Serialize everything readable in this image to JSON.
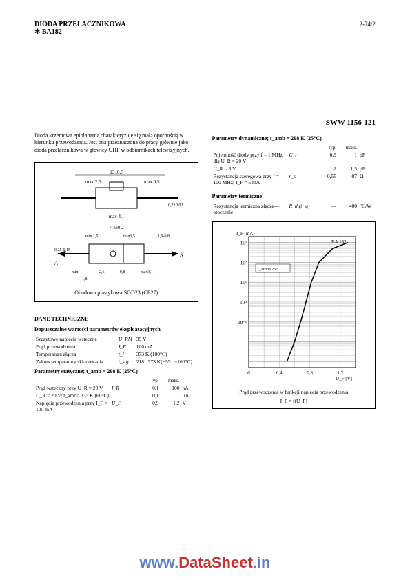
{
  "header": {
    "title_line1": "DIODA PRZEŁĄCZNIKOWA",
    "title_line2": "✻ BA182",
    "page": "2-74/2"
  },
  "sww": "SWW 1156-121",
  "intro": "Dioda krzemowa epiplanarna charakteryzuje się małą opornością w kierunku przewodzenia. Jest ona przeznaczona do pracy głównie jako dioda przełącznikowa w głowicy UHF w odbiornikach telewizyjnych.",
  "package_diagram": {
    "caption": "Obudowa plastykowa SOD23 (CE27)",
    "top_labels": {
      "width": "13±0,5",
      "left_max": "max 2,5",
      "right_max": "max 0,5",
      "bottom": "max 4,1",
      "lead": "0,2+0,02"
    },
    "bottom_labels": {
      "width": "7,4±0,2",
      "h": "0,25-0,15",
      "min15": "min 1,5",
      "min35": "min3,5",
      "r19": "1,9-0,8",
      "a": "A",
      "k": "K",
      "min_bare": "min",
      "v18": "1,8",
      "v26": "2,6",
      "v08": "0,8",
      "max31": "max3,1"
    }
  },
  "tech_data_title": "DANE TECHNICZNE",
  "limits_title": "Dopuszczalne wartości parametrów eksploatacyjnych",
  "limits": [
    {
      "label": "Szczytowe napięcie wsteczne",
      "sym": "U_RM",
      "val": "35 V"
    },
    {
      "label": "Prąd przewodzenia",
      "sym": "I_F",
      "val": "100 mA"
    },
    {
      "label": "Temperatura złącza",
      "sym": "t_j",
      "val": "373 K (100°C)"
    },
    {
      "label": "Zakres temperatury składowania",
      "sym": "t_stg",
      "val": "218...373 K(−55...+100°C)"
    }
  ],
  "static_title": "Parametry statyczne; t_amb = 298 K (25°C)",
  "col_typ": "typ.",
  "col_max": "maks.",
  "static": [
    {
      "label": "Prąd wsteczny przy U_R = 20 V",
      "sym": "I_R",
      "typ": "0,1",
      "max": "100",
      "unit": "nA"
    },
    {
      "label": "U_R = 20 V; t_amb= 333 K (60°C)",
      "sym": "",
      "typ": "0,1",
      "max": "1",
      "unit": "µA"
    },
    {
      "label": "Napięcie przewodzenia przy I_F = 100 mA",
      "sym": "U_F",
      "typ": "0,9",
      "max": "1,2",
      "unit": "V"
    }
  ],
  "dynamic_title": "Parametry dynamiczne; t_amb = 298 K (25°C)",
  "dynamic": [
    {
      "label": "Pojemność diody przy f = 1 MHz dla U_R = 20 V",
      "sym": "C_r",
      "typ": "0,9",
      "max": "1",
      "unit": "pF"
    },
    {
      "label": "U_R = 3 V",
      "sym": "",
      "typ": "1,2",
      "max": "1,5",
      "unit": "pF"
    },
    {
      "label": "Rezystancja szeregowa przy f = 100 MHz; I_F = 5 mA",
      "sym": "r_s",
      "typ": "0,55",
      "max": "07",
      "unit": "Ω"
    }
  ],
  "thermal_title": "Parametry termiczne",
  "thermal": [
    {
      "label": "Rezystancja termiczna złącze—otoczenie",
      "sym": "R_th(j−a)",
      "typ": "—",
      "max": "400",
      "unit": "°C/W"
    }
  ],
  "chart": {
    "ylabel": "I_F [mA]",
    "title_inset": "BA 182",
    "temp_inset": "t_amb=25°C",
    "y_ticks": [
      "10³",
      "10²",
      "10¹",
      "10⁰",
      "10⁻¹"
    ],
    "x_ticks": [
      "0",
      "0,4",
      "0,8",
      "1,2"
    ],
    "xlabel": "U_F [V]",
    "caption_line1": "Prąd przewodzenia w funkcji napięcia przewodzenia",
    "caption_line2": "I_F = f(U_F)",
    "curve_points": [
      [
        0.5,
        0.001
      ],
      [
        0.6,
        0.01
      ],
      [
        0.68,
        0.1
      ],
      [
        0.75,
        1
      ],
      [
        0.82,
        10
      ],
      [
        0.92,
        100
      ],
      [
        1.1,
        500
      ],
      [
        1.3,
        1000
      ]
    ],
    "x_range": [
      0,
      1.4
    ],
    "y_range": [
      0.0005,
      2000
    ],
    "grid_color": "#999",
    "line_color": "#000",
    "background": "#fff"
  },
  "watermark": {
    "prefix": "www.",
    "mid": "DataSheet",
    "suffix": ".in"
  }
}
